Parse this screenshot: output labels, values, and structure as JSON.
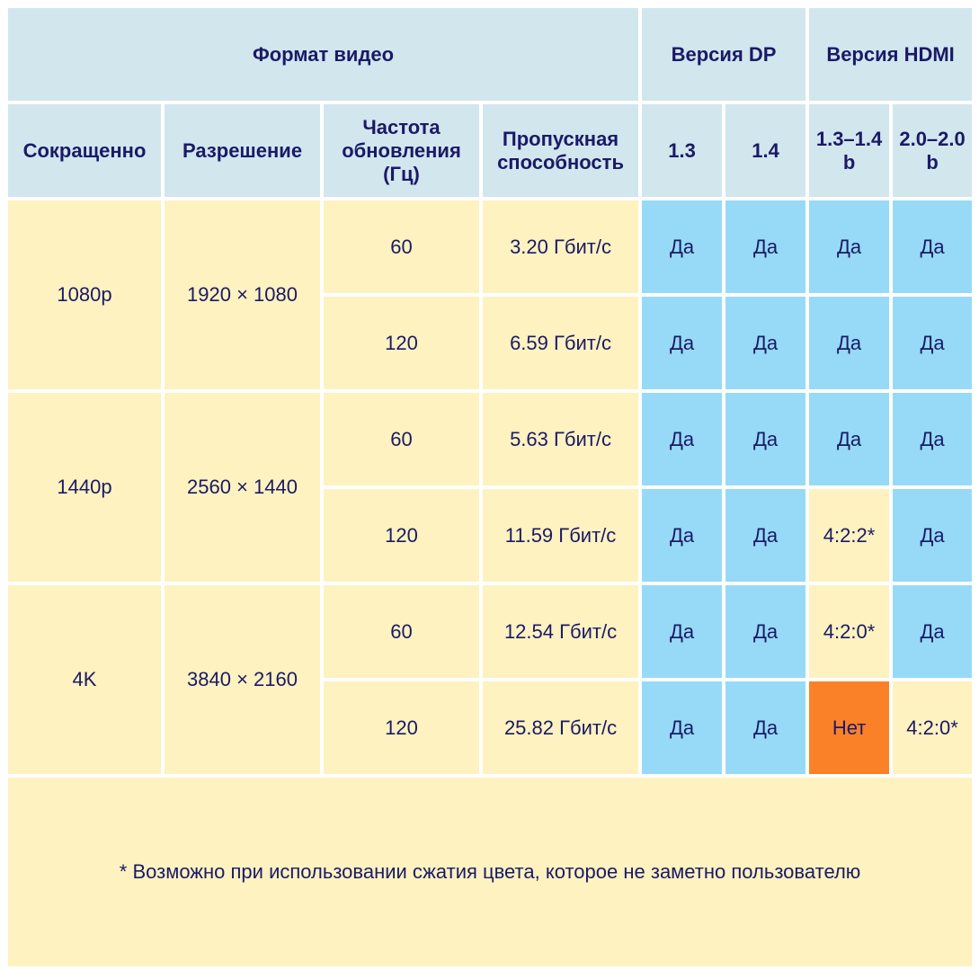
{
  "header": {
    "video_format": "Формат видео",
    "dp_version": "Версия DP",
    "hdmi_version": "Версия HDMI"
  },
  "columns": {
    "short": "Сокращенно",
    "resolution": "Разрешение",
    "refresh_line1": "Частота",
    "refresh_line2": "обновления",
    "refresh_line3": "(Гц)",
    "bandwidth_line1": "Пропускная",
    "bandwidth_line2": "способность",
    "dp13": "1.3",
    "dp14": "1.4",
    "hdmi13_line1": "1.3–1.4",
    "hdmi13_line2": "b",
    "hdmi20_line1": "2.0–2.0",
    "hdmi20_line2": "b"
  },
  "groups": [
    {
      "short": "1080p",
      "resolution": "1920 × 1080",
      "rows": [
        {
          "hz": "60",
          "bw": "3.20 Гбит/с",
          "dp13": "Да",
          "dp14": "Да",
          "hdmi13": "Да",
          "hdmi20": "Да"
        },
        {
          "hz": "120",
          "bw": "6.59 Гбит/с",
          "dp13": "Да",
          "dp14": "Да",
          "hdmi13": "Да",
          "hdmi20": "Да"
        }
      ]
    },
    {
      "short": "1440p",
      "resolution": "2560 × 1440",
      "rows": [
        {
          "hz": "60",
          "bw": "5.63 Гбит/с",
          "dp13": "Да",
          "dp14": "Да",
          "hdmi13": "Да",
          "hdmi20": "Да"
        },
        {
          "hz": "120",
          "bw": "11.59 Гбит/с",
          "dp13": "Да",
          "dp14": "Да",
          "hdmi13": "4:2:2*",
          "hdmi20": "Да"
        }
      ]
    },
    {
      "short": "4K",
      "resolution": "3840 × 2160",
      "rows": [
        {
          "hz": "60",
          "bw": "12.54 Гбит/с",
          "dp13": "Да",
          "dp14": "Да",
          "hdmi13": "4:2:0*",
          "hdmi20": "Да"
        },
        {
          "hz": "120",
          "bw": "25.82 Гбит/с",
          "dp13": "Да",
          "dp14": "Да",
          "hdmi13": "Нет",
          "hdmi20": "4:2:0*"
        }
      ]
    }
  ],
  "footnote": "* Возможно при использовании сжатия цвета, которое не заметно пользователю",
  "colors": {
    "header_bg": "#d2e6ee",
    "cell_yellow": "#fdf2c0",
    "cell_blue": "#96daf8",
    "cell_orange": "#fb8128",
    "text": "#1a1a66"
  }
}
